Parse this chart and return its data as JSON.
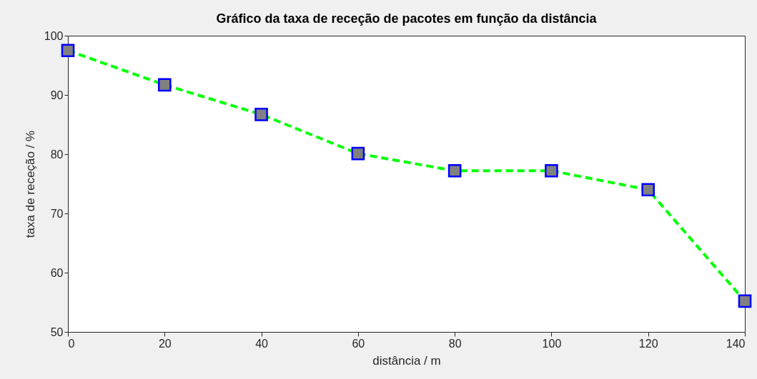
{
  "chart_data": {
    "type": "line",
    "title": "Gráfico da taxa de receção de pacotes em função da distância",
    "xlabel": "distância / m",
    "ylabel": "taxa de receção / %",
    "x": [
      0,
      20,
      40,
      60,
      80,
      100,
      120,
      140
    ],
    "series": [
      {
        "color": "#00ff00",
        "values": [
          97.5,
          91.7,
          86.7,
          80.1,
          77.2,
          77.2,
          74.0,
          55.2
        ]
      }
    ],
    "xlim": [
      0,
      140
    ],
    "xticks": [
      0,
      20,
      40,
      60,
      80,
      100,
      120,
      140
    ],
    "ylim": [
      50,
      100
    ],
    "yticks": [
      50,
      60,
      70,
      80,
      90,
      100
    ],
    "grid": false,
    "marker": "square",
    "line_style": "dashed"
  }
}
